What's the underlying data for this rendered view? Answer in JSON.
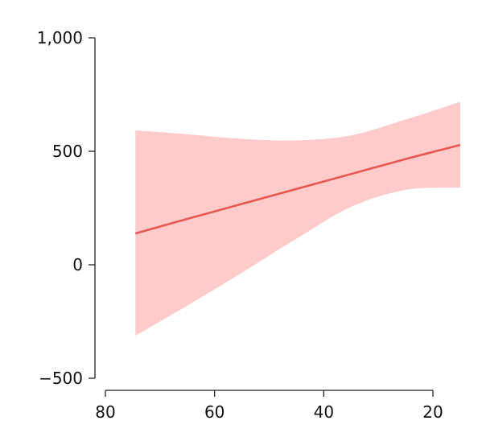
{
  "chart_data": {
    "type": "line",
    "x_reversed": true,
    "xlim": [
      80,
      20
    ],
    "ylim": [
      -500,
      1000
    ],
    "x_ticks": [
      80,
      60,
      40,
      20
    ],
    "x_tick_labels": [
      "80",
      "60",
      "40",
      "20"
    ],
    "y_ticks": [
      -500,
      0,
      500,
      1000
    ],
    "y_tick_labels": [
      "−500",
      "0",
      "500",
      "1,000"
    ],
    "grid": false,
    "series": [
      {
        "color": "#e8574e",
        "band_color": "#ffcaca",
        "x": [
          74.5,
          65,
          55,
          45,
          35,
          25,
          15
        ],
        "y": [
          138,
          202,
          268,
          334,
          400,
          466,
          528
        ],
        "band_upper": [
          592,
          575,
          555,
          548,
          570,
          640,
          718
        ],
        "band_lower": [
          -312,
          -180,
          -35,
          115,
          255,
          330,
          340
        ]
      }
    ]
  }
}
